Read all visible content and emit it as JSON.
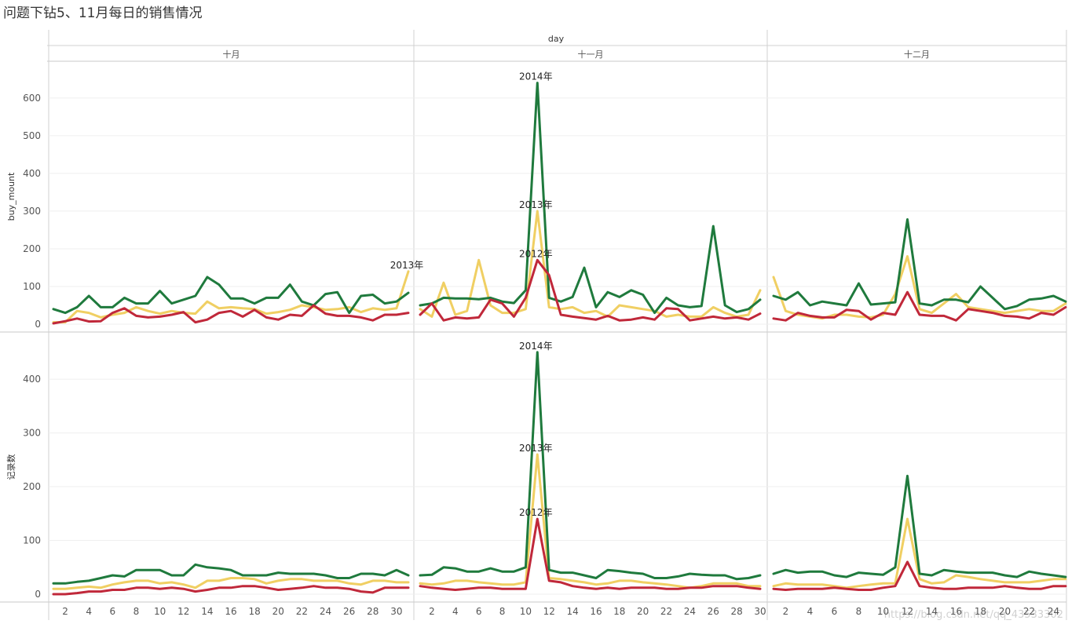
{
  "page": {
    "title": "问题下钻5、11月每日的销售情况",
    "watermark": "https://blog.csdn.net/qq_43533302"
  },
  "chart_data": {
    "type": "line",
    "column_header": "day",
    "panels": [
      {
        "label": "十月",
        "x": [
          1,
          2,
          3,
          4,
          5,
          6,
          7,
          8,
          9,
          10,
          11,
          12,
          13,
          14,
          15,
          16,
          17,
          18,
          19,
          20,
          21,
          22,
          23,
          24,
          25,
          26,
          27,
          28,
          29,
          30,
          31
        ]
      },
      {
        "label": "十一月",
        "x": [
          1,
          2,
          3,
          4,
          5,
          6,
          7,
          8,
          9,
          10,
          11,
          12,
          13,
          14,
          15,
          16,
          17,
          18,
          19,
          20,
          21,
          22,
          23,
          24,
          25,
          26,
          27,
          28,
          29,
          30
        ]
      },
      {
        "label": "十二月",
        "x": [
          1,
          2,
          3,
          4,
          5,
          6,
          7,
          8,
          9,
          10,
          11,
          12,
          13,
          14,
          15,
          16,
          17,
          18,
          19,
          20,
          21,
          22,
          23,
          24,
          25
        ]
      }
    ],
    "x_ticks": [
      2,
      4,
      6,
      8,
      10,
      12,
      14,
      16,
      18,
      20,
      22,
      24,
      26,
      28,
      30
    ],
    "colors": {
      "2014年": "#1f7a3d",
      "2013年": "#f0cf63",
      "2012年": "#c0283a"
    },
    "rows": [
      {
        "ylabel": "buy_mount",
        "ylim": [
          0,
          660
        ],
        "yticks": [
          0,
          100,
          200,
          300,
          400,
          500,
          600
        ],
        "series": {
          "2014年": [
            [
              40,
              30,
              45,
              75,
              45,
              45,
              70,
              55,
              55,
              88,
              55,
              65,
              75,
              125,
              105,
              68,
              68,
              55,
              70,
              70,
              105,
              60,
              50,
              80,
              85,
              30,
              75,
              78,
              55,
              60,
              83
            ],
            [
              50,
              55,
              70,
              68,
              68,
              66,
              70,
              60,
              56,
              90,
              640,
              70,
              60,
              72,
              150,
              45,
              85,
              72,
              90,
              78,
              30,
              70,
              50,
              45,
              48,
              260,
              50,
              32,
              40,
              65
            ],
            [
              75,
              65,
              85,
              50,
              60,
              55,
              50,
              108,
              52,
              55,
              58,
              278,
              55,
              50,
              65,
              65,
              58,
              100,
              70,
              40,
              48,
              65,
              68,
              75,
              60
            ]
          ],
          "2013年": [
            [
              5,
              5,
              35,
              30,
              18,
              25,
              30,
              45,
              35,
              28,
              35,
              30,
              28,
              60,
              42,
              45,
              42,
              40,
              28,
              32,
              38,
              50,
              45,
              38,
              40,
              45,
              32,
              42,
              38,
              42,
              140
            ],
            [
              40,
              20,
              110,
              25,
              35,
              170,
              50,
              30,
              30,
              40,
              300,
              45,
              40,
              45,
              30,
              35,
              20,
              50,
              45,
              40,
              35,
              20,
              25,
              20,
              20,
              45,
              30,
              20,
              25,
              90
            ],
            [
              125,
              35,
              25,
              20,
              15,
              25,
              25,
              20,
              18,
              25,
              80,
              180,
              40,
              30,
              55,
              80,
              45,
              40,
              35,
              30,
              35,
              40,
              35,
              35,
              55
            ]
          ],
          "2012年": [
            [
              2,
              8,
              15,
              7,
              8,
              30,
              42,
              22,
              18,
              20,
              25,
              32,
              5,
              12,
              30,
              35,
              20,
              38,
              18,
              12,
              25,
              22,
              50,
              28,
              22,
              22,
              18,
              10,
              25,
              25,
              30
            ],
            [
              25,
              55,
              10,
              18,
              15,
              18,
              65,
              55,
              20,
              70,
              170,
              130,
              25,
              20,
              16,
              12,
              22,
              10,
              12,
              18,
              12,
              42,
              40,
              10,
              15,
              20,
              15,
              18,
              12,
              28
            ],
            [
              15,
              10,
              30,
              22,
              18,
              18,
              38,
              35,
              12,
              30,
              25,
              85,
              25,
              22,
              22,
              10,
              40,
              35,
              30,
              22,
              20,
              15,
              30,
              25,
              45
            ]
          ]
        },
        "annotations": [
          {
            "text": "2013年",
            "panel": 0,
            "x": 31,
            "y": 140
          },
          {
            "text": "2014年",
            "panel": 1,
            "x": 11,
            "y": 640
          },
          {
            "text": "2013年",
            "panel": 1,
            "x": 11,
            "y": 300
          },
          {
            "text": "2012年",
            "panel": 1,
            "x": 11,
            "y": 170
          }
        ]
      },
      {
        "ylabel": "记录数",
        "ylim": [
          0,
          460
        ],
        "yticks": [
          0,
          100,
          200,
          300,
          400
        ],
        "series": {
          "2014年": [
            [
              20,
              20,
              23,
              25,
              30,
              35,
              33,
              45,
              45,
              45,
              35,
              35,
              55,
              50,
              48,
              45,
              35,
              35,
              35,
              40,
              38,
              38,
              38,
              35,
              30,
              30,
              38,
              38,
              35,
              45,
              35
            ],
            [
              35,
              36,
              50,
              48,
              42,
              42,
              48,
              42,
              42,
              50,
              450,
              45,
              40,
              40,
              35,
              30,
              45,
              43,
              40,
              38,
              30,
              30,
              33,
              38,
              36,
              35,
              35,
              28,
              30,
              35
            ],
            [
              38,
              45,
              40,
              42,
              42,
              35,
              32,
              40,
              38,
              36,
              50,
              220,
              38,
              35,
              45,
              42,
              40,
              40,
              40,
              35,
              32,
              42,
              38,
              35,
              32
            ]
          ],
          "2013年": [
            [
              10,
              10,
              12,
              14,
              12,
              18,
              22,
              25,
              25,
              20,
              22,
              18,
              12,
              25,
              25,
              30,
              30,
              28,
              20,
              25,
              28,
              28,
              25,
              25,
              25,
              20,
              18,
              25,
              25,
              22,
              22
            ],
            [
              20,
              18,
              20,
              25,
              25,
              22,
              20,
              18,
              18,
              22,
              260,
              30,
              28,
              25,
              22,
              18,
              20,
              25,
              25,
              22,
              20,
              18,
              15,
              12,
              15,
              20,
              20,
              20,
              15,
              15
            ],
            [
              15,
              20,
              18,
              18,
              18,
              15,
              12,
              15,
              18,
              20,
              20,
              140,
              28,
              20,
              22,
              35,
              32,
              28,
              25,
              22,
              22,
              22,
              25,
              28,
              28
            ]
          ],
          "2012年": [
            [
              0,
              0,
              2,
              5,
              5,
              8,
              8,
              12,
              12,
              10,
              12,
              10,
              5,
              8,
              12,
              12,
              15,
              15,
              12,
              8,
              10,
              12,
              15,
              12,
              12,
              10,
              5,
              3,
              12,
              12,
              12
            ],
            [
              15,
              12,
              10,
              8,
              10,
              12,
              12,
              10,
              10,
              10,
              140,
              25,
              22,
              15,
              12,
              10,
              12,
              10,
              12,
              12,
              12,
              10,
              10,
              12,
              12,
              15,
              15,
              15,
              12,
              10
            ],
            [
              10,
              8,
              10,
              10,
              10,
              12,
              10,
              8,
              8,
              12,
              15,
              60,
              15,
              12,
              10,
              10,
              12,
              12,
              12,
              15,
              12,
              10,
              10,
              15,
              15
            ]
          ]
        },
        "annotations": [
          {
            "text": "2014年",
            "panel": 1,
            "x": 11,
            "y": 450
          },
          {
            "text": "2013年",
            "panel": 1,
            "x": 11,
            "y": 260
          },
          {
            "text": "2012年",
            "panel": 1,
            "x": 11,
            "y": 140
          }
        ]
      }
    ]
  }
}
